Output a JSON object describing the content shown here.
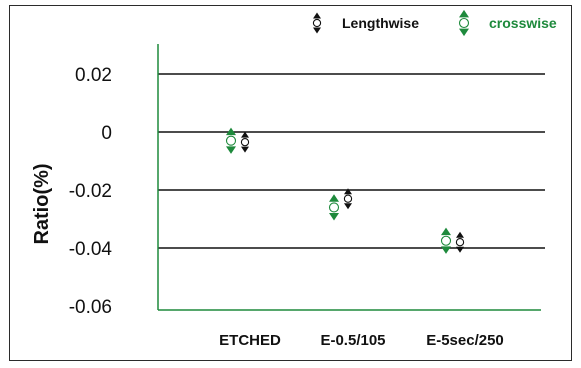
{
  "chart_data": {
    "type": "scatter",
    "categories": [
      "ETCHED",
      "E-0.5/105",
      "E-5sec/250"
    ],
    "ylabel": "Ratio(%)",
    "xlabel": "",
    "ylim": [
      -0.06,
      0.02
    ],
    "yticks": [
      "0.02",
      "0",
      "-0.02",
      "-0.04",
      "-0.06"
    ],
    "ytick_values": [
      0.02,
      0,
      -0.02,
      -0.04,
      -0.06
    ],
    "gridlines_at": [
      0.02,
      0,
      -0.02,
      -0.04
    ],
    "grid": true,
    "legend_position": "top-right",
    "series": [
      {
        "name": "Lengthwise",
        "values": [
          -0.0035,
          -0.023,
          -0.038
        ],
        "color": "#111111"
      },
      {
        "name": "crosswise",
        "values": [
          -0.003,
          -0.026,
          -0.0375
        ],
        "color": "#1e8a3c"
      }
    ]
  }
}
